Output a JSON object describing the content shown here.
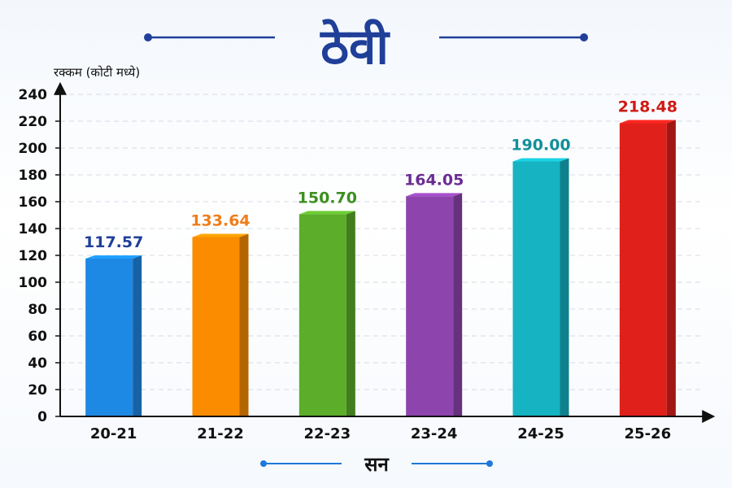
{
  "chart_data": {
    "type": "bar",
    "title": "ठेवी",
    "ylabel": "रक्कम (कोटी मध्ये)",
    "xlabel": "सन",
    "categories": [
      "20-21",
      "21-22",
      "22-23",
      "23-24",
      "24-25",
      "25-26"
    ],
    "values": [
      117.57,
      133.64,
      150.7,
      164.05,
      190.0,
      218.48
    ],
    "value_labels": [
      "117.57",
      "133.64",
      "150.70",
      "164.05",
      "190.00",
      "218.48"
    ],
    "ylim": [
      0,
      240
    ],
    "yticks": [
      "0",
      "20",
      "40",
      "60",
      "80",
      "100",
      "120",
      "140",
      "160",
      "180",
      "200",
      "220",
      "240"
    ],
    "grid": true,
    "legend": "none"
  },
  "colors": {
    "title": "#1f3f99",
    "bars": [
      "#1e88e5",
      "#fb8c00",
      "#5cae2a",
      "#8e44ad",
      "#16b3c2",
      "#e0201b"
    ],
    "labels": [
      "#1f3f99",
      "#f07d1a",
      "#3c8f1f",
      "#6a2c91",
      "#138f9a",
      "#d01a15"
    ]
  }
}
